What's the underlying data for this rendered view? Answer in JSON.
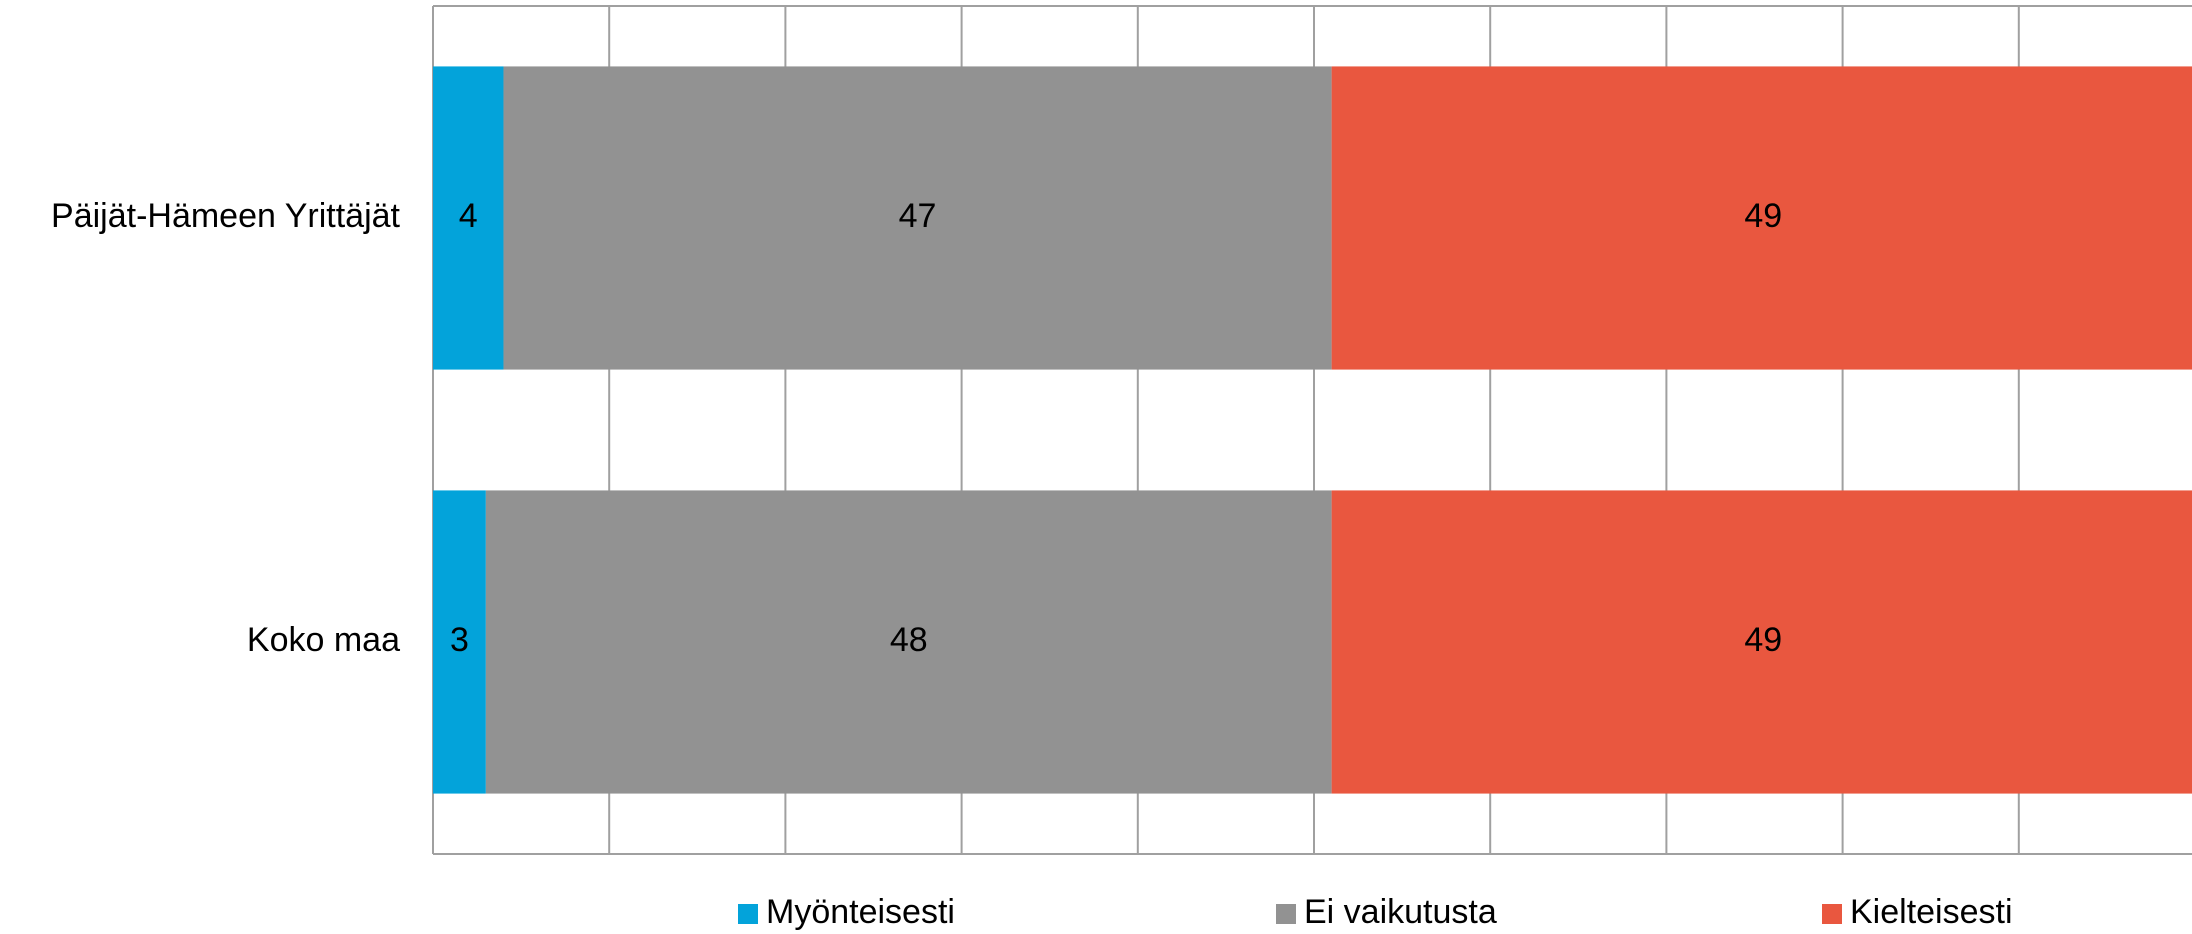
{
  "chart_data": {
    "type": "stacked_barh",
    "categories": [
      "Päijät-Hämeen Yrittäjät",
      "Koko maa"
    ],
    "series": [
      {
        "name": "Myönteisesti",
        "color": "#03a3da",
        "values": [
          4,
          3
        ]
      },
      {
        "name": "Ei vaikutusta",
        "color": "#929292",
        "values": [
          47,
          48
        ]
      },
      {
        "name": "Kielteisesti",
        "color": "#e9573f",
        "values": [
          49,
          49
        ]
      }
    ],
    "xlim": [
      0,
      100
    ],
    "xticks": [
      0,
      10,
      20,
      30,
      40,
      50,
      60,
      70,
      80,
      90,
      100
    ],
    "grid": true,
    "legend": "bottom"
  }
}
